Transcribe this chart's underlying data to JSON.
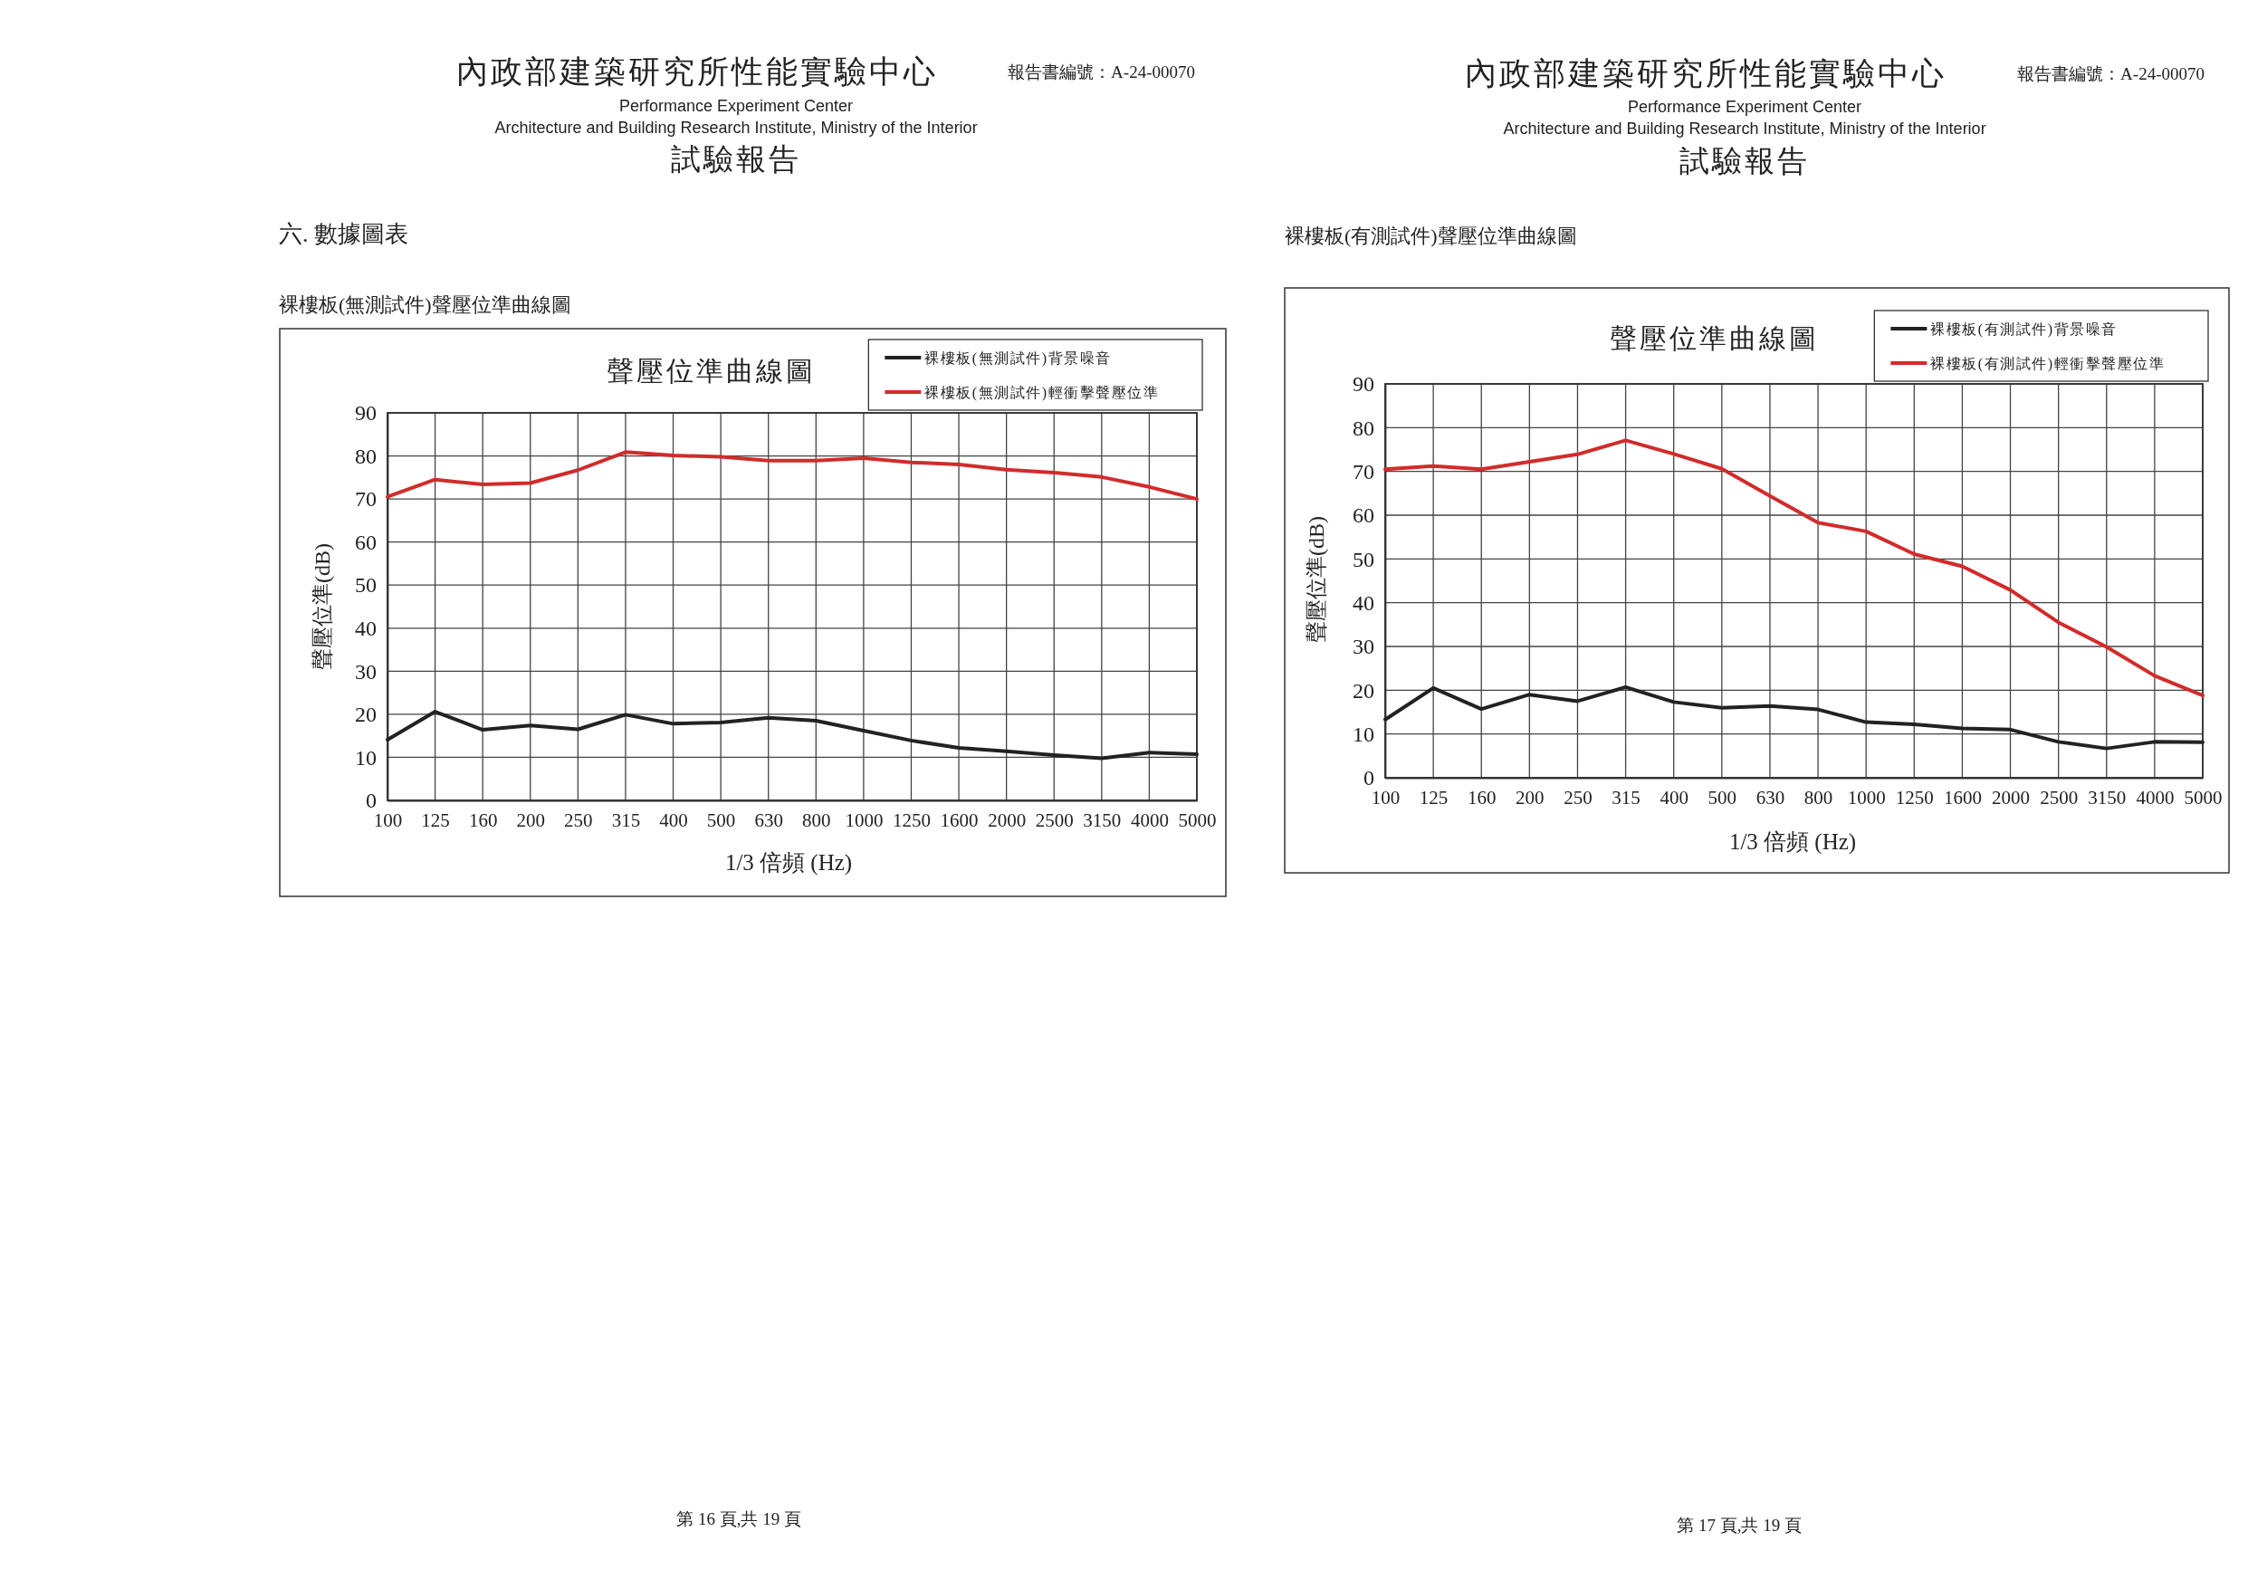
{
  "chart_data": [
    {
      "type": "line",
      "title": "聲壓位準曲線圖",
      "xlabel": "1/3 倍頻 (Hz)",
      "ylabel": "聲壓位準(dB)",
      "categories": [
        "100",
        "125",
        "160",
        "200",
        "250",
        "315",
        "400",
        "500",
        "630",
        "800",
        "1000",
        "1250",
        "1600",
        "2000",
        "2500",
        "3150",
        "4000",
        "5000"
      ],
      "series": [
        {
          "name": "裸樓板(無測試件)背景噪音",
          "color": "#222222",
          "values": [
            14.1,
            20.6,
            16.4,
            17.4,
            16.5,
            19.9,
            17.8,
            18.1,
            19.2,
            18.5,
            16.2,
            13.9,
            12.2,
            11.4,
            10.5,
            9.8,
            11.1,
            10.7
          ]
        },
        {
          "name": "裸樓板(無測試件)輕衝擊聲壓位準",
          "color": "#d22b2b",
          "values": [
            70.5,
            74.5,
            73.4,
            73.7,
            76.7,
            80.9,
            80.1,
            79.8,
            78.9,
            78.9,
            79.5,
            78.5,
            78.0,
            76.8,
            76.1,
            75.1,
            72.8,
            70.0
          ]
        }
      ],
      "ylim": [
        0,
        90
      ],
      "yticks": [
        0,
        10,
        20,
        30,
        40,
        50,
        60,
        70,
        80,
        90
      ],
      "grid": true,
      "legend": "top right",
      "annotations": [
        "內政部建築研究所性能實驗中心",
        "Performance Experiment Center",
        "Architecture and Building Research Institute, Ministry of the Interior",
        "試驗報告",
        "報告書編號：A-24-00070",
        "裸樓板(無測試件)聲壓位準曲線圖",
        "第 16 頁,共 19 頁",
        "六. 數據圖表"
      ]
    },
    {
      "type": "line",
      "title": "聲壓位準曲線圖",
      "xlabel": "1/3 倍頻 (Hz)",
      "ylabel": "聲壓位準(dB)",
      "categories": [
        "100",
        "125",
        "160",
        "200",
        "250",
        "315",
        "400",
        "500",
        "630",
        "800",
        "1000",
        "1250",
        "1600",
        "2000",
        "2500",
        "3150",
        "4000",
        "5000"
      ],
      "series": [
        {
          "name": "裸樓板(有測試件)背景噪音",
          "color": "#222222",
          "values": [
            13.3,
            20.5,
            15.7,
            19.0,
            17.5,
            20.7,
            17.3,
            16.0,
            16.4,
            15.6,
            12.7,
            12.2,
            11.3,
            11.0,
            8.2,
            6.7,
            8.2,
            8.1
          ]
        },
        {
          "name": "裸樓板(有測試件)輕衝擊聲壓位準",
          "color": "#d22b2b",
          "values": [
            70.5,
            71.2,
            70.5,
            72.2,
            73.9,
            77.1,
            74.0,
            70.6,
            64.4,
            58.3,
            56.3,
            51.1,
            48.3,
            42.9,
            35.5,
            29.9,
            23.3,
            18.8
          ]
        }
      ],
      "ylim": [
        0,
        90
      ],
      "yticks": [
        0,
        10,
        20,
        30,
        40,
        50,
        60,
        70,
        80,
        90
      ],
      "grid": true,
      "legend": "top right",
      "annotations": [
        "內政部建築研究所性能實驗中心",
        "Performance Experiment Center",
        "Architecture and Building Research Institute, Ministry of the Interior",
        "試驗報告",
        "報告書編號：A-24-00070",
        "裸樓板(有測試件)聲壓位準曲線圖",
        "第 17 頁,共 19 頁"
      ]
    }
  ]
}
